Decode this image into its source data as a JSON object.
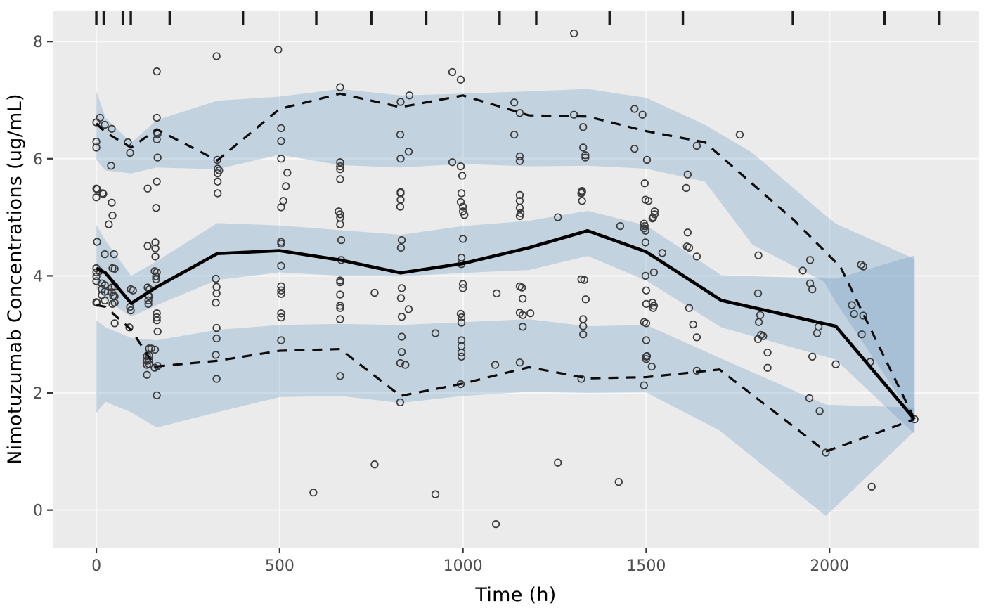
{
  "chart_data": {
    "type": "scatter",
    "subtype": "vpc-ribbon-line-scatter",
    "title": "",
    "xlabel": "Time (h)",
    "ylabel": "Nimotuzumab Concentrations (ug/mL)",
    "xlim": [
      -119,
      2408
    ],
    "ylim": [
      -0.64,
      8.53
    ],
    "grid": "major-only",
    "x_ticks": [
      0,
      500,
      1000,
      1500,
      2000
    ],
    "x_tick_labels": [
      "0",
      "500",
      "1000",
      "1500",
      "2000"
    ],
    "y_ticks": [
      0,
      2,
      4,
      6,
      8
    ],
    "y_tick_labels": [
      "0",
      "2",
      "4",
      "6",
      "8"
    ],
    "rug_times": [
      0,
      20,
      72,
      94,
      200,
      400,
      600,
      750,
      900,
      1100,
      1200,
      1400,
      1600,
      1900,
      2150,
      2300
    ],
    "colors": {
      "panel_bg": "#ebebeb",
      "gridline": "#f8f8f8",
      "ribbon_fill": "#6699c4",
      "ribbon_opacity": 0.3,
      "median_line": "#000000",
      "percentile_line": "#0d0d0d",
      "point_stroke": "#3a3a3a",
      "tick_text": "#4d4d4d",
      "tick_mark": "#333333",
      "rug": "#1a1a1a"
    },
    "ribbons": [
      {
        "name": "ci-upper-percentile",
        "t": [
          0,
          25,
          95,
          165,
          330,
          500,
          665,
          830,
          1000,
          1180,
          1340,
          1500,
          1660,
          1790,
          1985,
          2017,
          2232
        ],
        "hi": [
          7.15,
          6.7,
          6.27,
          6.66,
          6.99,
          7.06,
          7.19,
          7.08,
          7.11,
          7.15,
          7.19,
          7.04,
          6.58,
          6.1,
          5.05,
          4.89,
          4.29
        ],
        "lo": [
          5.98,
          5.8,
          5.75,
          5.85,
          5.82,
          6.07,
          5.89,
          5.85,
          5.91,
          5.87,
          5.88,
          5.83,
          5.61,
          4.53,
          3.9,
          3.55,
          1.55
        ]
      },
      {
        "name": "ci-median",
        "t": [
          0,
          25,
          95,
          165,
          330,
          500,
          665,
          830,
          1000,
          1180,
          1340,
          1500,
          1705,
          2017,
          2232
        ],
        "hi": [
          4.87,
          4.6,
          4.0,
          4.25,
          4.9,
          4.86,
          4.78,
          4.7,
          4.85,
          4.94,
          5.11,
          4.86,
          4.01,
          3.95,
          4.35
        ],
        "lo": [
          3.78,
          3.6,
          3.3,
          3.5,
          3.93,
          4.06,
          4.0,
          3.99,
          4.05,
          4.1,
          4.34,
          3.92,
          3.12,
          2.57,
          1.3
        ]
      },
      {
        "name": "ci-lower-percentile",
        "t": [
          0,
          25,
          95,
          165,
          330,
          500,
          665,
          830,
          1000,
          1180,
          1340,
          1500,
          1700,
          1990,
          2232
        ],
        "hi": [
          3.24,
          3.12,
          2.94,
          2.9,
          3.08,
          3.16,
          3.18,
          3.16,
          3.21,
          3.26,
          3.14,
          3.16,
          2.6,
          1.8,
          1.75
        ],
        "lo": [
          1.66,
          1.85,
          1.67,
          1.41,
          1.67,
          1.93,
          1.95,
          1.83,
          1.95,
          2.02,
          2.0,
          2.01,
          1.36,
          -0.1,
          1.35
        ]
      }
    ],
    "series": [
      {
        "name": "observed-95th-percentile",
        "style": "dashed",
        "width": 3.2,
        "points": [
          [
            0,
            6.6
          ],
          [
            25,
            6.45
          ],
          [
            95,
            6.19
          ],
          [
            165,
            6.5
          ],
          [
            330,
            5.97
          ],
          [
            500,
            6.85
          ],
          [
            665,
            7.11
          ],
          [
            830,
            6.88
          ],
          [
            1000,
            7.08
          ],
          [
            1180,
            6.74
          ],
          [
            1340,
            6.72
          ],
          [
            1500,
            6.47
          ],
          [
            1660,
            6.28
          ],
          [
            1903,
            4.95
          ],
          [
            2030,
            4.15
          ],
          [
            2232,
            1.55
          ]
        ]
      },
      {
        "name": "observed-5th-percentile",
        "style": "dashed",
        "width": 3.2,
        "points": [
          [
            0,
            3.5
          ],
          [
            25,
            3.47
          ],
          [
            95,
            3.08
          ],
          [
            160,
            2.45
          ],
          [
            330,
            2.55
          ],
          [
            500,
            2.72
          ],
          [
            665,
            2.75
          ],
          [
            830,
            1.95
          ],
          [
            1000,
            2.16
          ],
          [
            1180,
            2.44
          ],
          [
            1340,
            2.25
          ],
          [
            1500,
            2.27
          ],
          [
            1700,
            2.4
          ],
          [
            1990,
            1.0
          ],
          [
            2232,
            1.55
          ]
        ]
      },
      {
        "name": "observed-median",
        "style": "solid",
        "width": 4.6,
        "points": [
          [
            0,
            4.13
          ],
          [
            25,
            4.05
          ],
          [
            95,
            3.53
          ],
          [
            165,
            3.81
          ],
          [
            330,
            4.38
          ],
          [
            500,
            4.43
          ],
          [
            665,
            4.27
          ],
          [
            830,
            4.05
          ],
          [
            1000,
            4.21
          ],
          [
            1180,
            4.48
          ],
          [
            1340,
            4.77
          ],
          [
            1500,
            4.41
          ],
          [
            1705,
            3.58
          ],
          [
            2017,
            3.14
          ],
          [
            2232,
            1.55
          ]
        ]
      }
    ],
    "observations": [
      [
        0,
        6.62
      ],
      [
        0,
        6.29
      ],
      [
        0,
        6.19
      ],
      [
        0,
        5.49
      ],
      [
        2,
        5.48
      ],
      [
        0,
        5.34
      ],
      [
        2,
        4.58
      ],
      [
        0,
        4.13
      ],
      [
        0,
        4.06
      ],
      [
        0,
        3.99
      ],
      [
        0,
        3.91
      ],
      [
        0,
        3.55
      ],
      [
        2,
        3.54
      ],
      [
        10,
        6.7
      ],
      [
        23,
        6.58
      ],
      [
        17,
        5.41
      ],
      [
        19,
        5.4
      ],
      [
        34,
        4.88
      ],
      [
        23,
        4.37
      ],
      [
        8,
        4.08
      ],
      [
        15,
        3.87
      ],
      [
        23,
        3.84
      ],
      [
        15,
        3.77
      ],
      [
        23,
        3.73
      ],
      [
        15,
        3.67
      ],
      [
        23,
        3.58
      ],
      [
        42,
        6.51
      ],
      [
        40,
        5.88
      ],
      [
        42,
        5.25
      ],
      [
        44,
        5.03
      ],
      [
        48,
        4.37
      ],
      [
        44,
        4.13
      ],
      [
        50,
        4.12
      ],
      [
        50,
        3.82
      ],
      [
        42,
        3.8
      ],
      [
        42,
        3.72
      ],
      [
        46,
        3.66
      ],
      [
        50,
        3.65
      ],
      [
        50,
        3.54
      ],
      [
        44,
        3.52
      ],
      [
        50,
        3.19
      ],
      [
        86,
        6.28
      ],
      [
        92,
        6.1
      ],
      [
        94,
        3.77
      ],
      [
        100,
        3.75
      ],
      [
        92,
        3.47
      ],
      [
        94,
        3.41
      ],
      [
        90,
        3.12
      ],
      [
        165,
        7.49
      ],
      [
        165,
        6.7
      ],
      [
        165,
        6.45
      ],
      [
        167,
        6.42
      ],
      [
        165,
        6.33
      ],
      [
        167,
        6.02
      ],
      [
        165,
        5.61
      ],
      [
        140,
        5.49
      ],
      [
        163,
        5.16
      ],
      [
        161,
        4.57
      ],
      [
        140,
        4.51
      ],
      [
        161,
        4.47
      ],
      [
        161,
        4.33
      ],
      [
        159,
        4.08
      ],
      [
        165,
        4.06
      ],
      [
        163,
        3.99
      ],
      [
        163,
        3.94
      ],
      [
        140,
        3.8
      ],
      [
        145,
        3.77
      ],
      [
        142,
        3.66
      ],
      [
        144,
        3.65
      ],
      [
        142,
        3.58
      ],
      [
        142,
        3.52
      ],
      [
        165,
        3.36
      ],
      [
        165,
        3.29
      ],
      [
        165,
        3.24
      ],
      [
        167,
        3.05
      ],
      [
        144,
        2.76
      ],
      [
        150,
        2.76
      ],
      [
        160,
        2.74
      ],
      [
        144,
        2.64
      ],
      [
        138,
        2.63
      ],
      [
        144,
        2.56
      ],
      [
        138,
        2.55
      ],
      [
        144,
        2.49
      ],
      [
        138,
        2.48
      ],
      [
        167,
        2.46
      ],
      [
        159,
        2.43
      ],
      [
        138,
        2.31
      ],
      [
        165,
        1.96
      ],
      [
        328,
        7.75
      ],
      [
        330,
        5.98
      ],
      [
        331,
        5.83
      ],
      [
        335,
        5.8
      ],
      [
        331,
        5.75
      ],
      [
        331,
        5.61
      ],
      [
        331,
        5.41
      ],
      [
        326,
        3.95
      ],
      [
        328,
        3.81
      ],
      [
        328,
        3.7
      ],
      [
        326,
        3.54
      ],
      [
        328,
        3.11
      ],
      [
        328,
        2.93
      ],
      [
        326,
        2.65
      ],
      [
        328,
        2.24
      ],
      [
        496,
        7.86
      ],
      [
        504,
        6.52
      ],
      [
        504,
        6.3
      ],
      [
        504,
        6.0
      ],
      [
        521,
        5.76
      ],
      [
        517,
        5.53
      ],
      [
        510,
        5.28
      ],
      [
        504,
        5.17
      ],
      [
        504,
        4.58
      ],
      [
        504,
        4.55
      ],
      [
        504,
        4.17
      ],
      [
        504,
        3.82
      ],
      [
        504,
        3.75
      ],
      [
        504,
        3.69
      ],
      [
        504,
        3.36
      ],
      [
        504,
        3.29
      ],
      [
        504,
        2.9
      ],
      [
        592,
        0.3
      ],
      [
        665,
        7.22
      ],
      [
        665,
        5.94
      ],
      [
        665,
        5.87
      ],
      [
        665,
        5.82
      ],
      [
        665,
        5.65
      ],
      [
        661,
        5.1
      ],
      [
        665,
        5.05
      ],
      [
        665,
        4.99
      ],
      [
        665,
        4.88
      ],
      [
        668,
        4.61
      ],
      [
        668,
        4.27
      ],
      [
        665,
        3.92
      ],
      [
        665,
        3.89
      ],
      [
        665,
        3.68
      ],
      [
        665,
        3.49
      ],
      [
        665,
        3.45
      ],
      [
        665,
        3.26
      ],
      [
        665,
        2.29
      ],
      [
        759,
        3.71
      ],
      [
        759,
        0.78
      ],
      [
        854,
        7.08
      ],
      [
        830,
        6.97
      ],
      [
        829,
        6.41
      ],
      [
        852,
        6.12
      ],
      [
        830,
        6.0
      ],
      [
        830,
        5.43
      ],
      [
        830,
        5.41
      ],
      [
        830,
        5.3
      ],
      [
        829,
        5.18
      ],
      [
        833,
        4.61
      ],
      [
        831,
        4.48
      ],
      [
        833,
        3.79
      ],
      [
        831,
        3.62
      ],
      [
        852,
        3.43
      ],
      [
        833,
        3.3
      ],
      [
        833,
        2.96
      ],
      [
        833,
        2.7
      ],
      [
        829,
        2.51
      ],
      [
        843,
        2.48
      ],
      [
        829,
        1.84
      ],
      [
        925,
        3.02
      ],
      [
        925,
        0.27
      ],
      [
        971,
        7.48
      ],
      [
        994,
        7.35
      ],
      [
        971,
        5.94
      ],
      [
        994,
        5.87
      ],
      [
        998,
        5.71
      ],
      [
        996,
        5.41
      ],
      [
        994,
        5.26
      ],
      [
        1000,
        5.18
      ],
      [
        1000,
        5.1
      ],
      [
        1004,
        5.04
      ],
      [
        1000,
        4.63
      ],
      [
        996,
        4.31
      ],
      [
        996,
        4.2
      ],
      [
        1000,
        3.86
      ],
      [
        1000,
        3.79
      ],
      [
        994,
        3.35
      ],
      [
        996,
        3.29
      ],
      [
        996,
        3.2
      ],
      [
        996,
        2.9
      ],
      [
        996,
        2.8
      ],
      [
        996,
        2.69
      ],
      [
        996,
        2.62
      ],
      [
        994,
        2.15
      ],
      [
        1092,
        3.7
      ],
      [
        1088,
        2.48
      ],
      [
        1090,
        -0.24
      ],
      [
        1140,
        6.96
      ],
      [
        1155,
        6.78
      ],
      [
        1140,
        6.41
      ],
      [
        1155,
        6.04
      ],
      [
        1155,
        5.96
      ],
      [
        1155,
        5.38
      ],
      [
        1155,
        5.28
      ],
      [
        1155,
        5.16
      ],
      [
        1157,
        5.07
      ],
      [
        1155,
        5.02
      ],
      [
        1155,
        3.82
      ],
      [
        1161,
        3.8
      ],
      [
        1163,
        3.61
      ],
      [
        1155,
        3.37
      ],
      [
        1184,
        3.36
      ],
      [
        1163,
        3.33
      ],
      [
        1163,
        3.13
      ],
      [
        1155,
        2.52
      ],
      [
        1259,
        5.0
      ],
      [
        1259,
        0.81
      ],
      [
        1303,
        8.14
      ],
      [
        1303,
        6.75
      ],
      [
        1328,
        6.54
      ],
      [
        1328,
        6.19
      ],
      [
        1334,
        6.06
      ],
      [
        1334,
        6.02
      ],
      [
        1325,
        5.45
      ],
      [
        1325,
        5.43
      ],
      [
        1323,
        5.41
      ],
      [
        1325,
        5.28
      ],
      [
        1323,
        3.94
      ],
      [
        1331,
        3.93
      ],
      [
        1335,
        3.6
      ],
      [
        1328,
        3.26
      ],
      [
        1328,
        3.14
      ],
      [
        1328,
        3.0
      ],
      [
        1323,
        2.24
      ],
      [
        1425,
        0.48
      ],
      [
        1429,
        4.85
      ],
      [
        1468,
        6.85
      ],
      [
        1490,
        6.75
      ],
      [
        1468,
        6.17
      ],
      [
        1502,
        5.98
      ],
      [
        1496,
        5.58
      ],
      [
        1506,
        5.28
      ],
      [
        1498,
        5.3
      ],
      [
        1523,
        5.1
      ],
      [
        1523,
        5.05
      ],
      [
        1519,
        5.0
      ],
      [
        1517,
        4.98
      ],
      [
        1494,
        4.89
      ],
      [
        1496,
        4.85
      ],
      [
        1494,
        4.81
      ],
      [
        1498,
        4.77
      ],
      [
        1498,
        4.57
      ],
      [
        1544,
        4.39
      ],
      [
        1521,
        4.06
      ],
      [
        1498,
        4.0
      ],
      [
        1500,
        3.75
      ],
      [
        1517,
        3.54
      ],
      [
        1500,
        3.52
      ],
      [
        1521,
        3.49
      ],
      [
        1519,
        3.45
      ],
      [
        1494,
        3.21
      ],
      [
        1500,
        3.19
      ],
      [
        1500,
        2.9
      ],
      [
        1502,
        2.63
      ],
      [
        1500,
        2.62
      ],
      [
        1500,
        2.58
      ],
      [
        1515,
        2.45
      ],
      [
        1494,
        2.13
      ],
      [
        1638,
        6.22
      ],
      [
        1613,
        5.73
      ],
      [
        1609,
        5.5
      ],
      [
        1613,
        4.74
      ],
      [
        1611,
        4.5
      ],
      [
        1617,
        4.48
      ],
      [
        1638,
        4.33
      ],
      [
        1617,
        3.45
      ],
      [
        1628,
        3.17
      ],
      [
        1638,
        2.95
      ],
      [
        1638,
        2.38
      ],
      [
        1755,
        6.41
      ],
      [
        1806,
        4.35
      ],
      [
        1805,
        3.7
      ],
      [
        1811,
        3.33
      ],
      [
        1807,
        3.21
      ],
      [
        1813,
        2.99
      ],
      [
        1819,
        2.97
      ],
      [
        1805,
        2.92
      ],
      [
        1831,
        2.69
      ],
      [
        1831,
        2.43
      ],
      [
        1947,
        4.27
      ],
      [
        1927,
        4.09
      ],
      [
        1947,
        3.87
      ],
      [
        1953,
        3.77
      ],
      [
        1970,
        3.13
      ],
      [
        1966,
        3.02
      ],
      [
        1953,
        2.62
      ],
      [
        1945,
        1.91
      ],
      [
        1973,
        1.69
      ],
      [
        1990,
        0.98
      ],
      [
        2017,
        2.49
      ],
      [
        2061,
        3.5
      ],
      [
        2067,
        3.35
      ],
      [
        2086,
        4.19
      ],
      [
        2092,
        4.16
      ],
      [
        2092,
        3.32
      ],
      [
        2088,
        3.0
      ],
      [
        2111,
        2.53
      ],
      [
        2115,
        0.4
      ],
      [
        2232,
        1.55
      ]
    ]
  }
}
